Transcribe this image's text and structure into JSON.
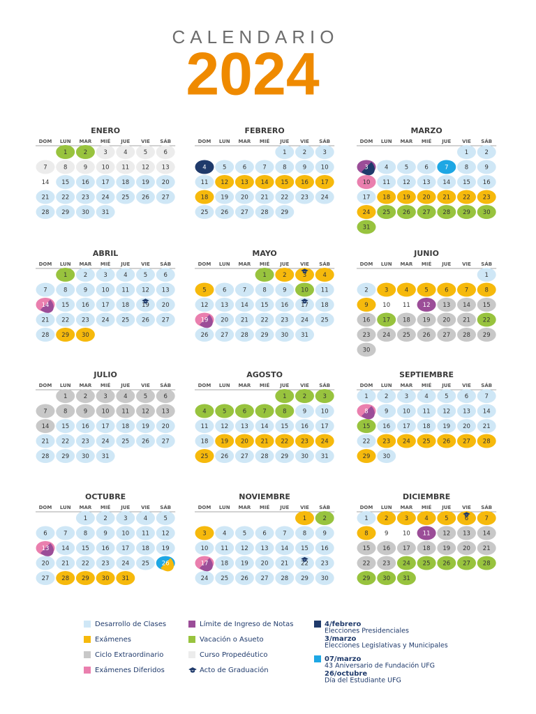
{
  "header": {
    "title": "CALENDARIO",
    "year": "2024"
  },
  "weekdays": [
    "DOM",
    "LUN",
    "MAR",
    "MIÉ",
    "JUE",
    "VIE",
    "SÁB"
  ],
  "months": [
    {
      "name": "ENERO",
      "start": 1,
      "days": [
        1,
        2,
        3,
        4,
        5,
        6,
        7,
        8,
        9,
        10,
        11,
        12,
        13,
        14,
        15,
        16,
        17,
        18,
        19,
        20,
        21,
        22,
        23,
        24,
        25,
        26,
        27,
        28,
        29,
        30,
        31
      ],
      "colors": [
        "#98c33e",
        "#98c33e",
        "#ececec",
        "#ececec",
        "#ececec",
        "#ececec",
        "#ececec",
        "#ececec",
        "#ececec",
        "#ececec",
        "#ececec",
        "#ececec",
        "#ececec",
        "#ffffff",
        "#cfe7f6",
        "#cfe7f6",
        "#cfe7f6",
        "#cfe7f6",
        "#cfe7f6",
        "#cfe7f6",
        "#cfe7f6",
        "#cfe7f6",
        "#cfe7f6",
        "#cfe7f6",
        "#cfe7f6",
        "#cfe7f6",
        "#cfe7f6",
        "#cfe7f6",
        "#cfe7f6",
        "#cfe7f6",
        "#cfe7f6"
      ],
      "caps": []
    },
    {
      "name": "FEBRERO",
      "start": 4,
      "days": [
        1,
        2,
        3,
        4,
        5,
        6,
        7,
        8,
        9,
        10,
        11,
        12,
        13,
        14,
        15,
        16,
        17,
        18,
        19,
        20,
        21,
        22,
        23,
        24,
        25,
        26,
        27,
        28,
        29
      ],
      "colors": [
        "#cfe7f6",
        "#cfe7f6",
        "#cfe7f6",
        "#1f3a6b",
        "#cfe7f6",
        "#cfe7f6",
        "#cfe7f6",
        "#cfe7f6",
        "#cfe7f6",
        "#cfe7f6",
        "#cfe7f6",
        "#f6b90c",
        "#f6b90c",
        "#f6b90c",
        "#f6b90c",
        "#f6b90c",
        "#f6b90c",
        "#f6b90c",
        "#cfe7f6",
        "#cfe7f6",
        "#cfe7f6",
        "#cfe7f6",
        "#cfe7f6",
        "#cfe7f6",
        "#cfe7f6",
        "#cfe7f6",
        "#cfe7f6",
        "#cfe7f6",
        "#cfe7f6"
      ],
      "caps": []
    },
    {
      "name": "MARZO",
      "start": 5,
      "days": [
        1,
        2,
        3,
        4,
        5,
        6,
        7,
        8,
        9,
        10,
        11,
        12,
        13,
        14,
        15,
        16,
        17,
        18,
        19,
        20,
        21,
        22,
        23,
        24,
        25,
        26,
        27,
        28,
        29,
        30,
        31
      ],
      "colors": [
        "#cfe7f6",
        "#cfe7f6",
        [
          "#9b4d98",
          "#1f3a6b"
        ],
        "#cfe7f6",
        "#cfe7f6",
        "#cfe7f6",
        "#1ea7e4",
        "#cfe7f6",
        "#cfe7f6",
        "#ea7fae",
        "#cfe7f6",
        "#cfe7f6",
        "#cfe7f6",
        "#cfe7f6",
        "#cfe7f6",
        "#cfe7f6",
        "#cfe7f6",
        "#f6b90c",
        "#f6b90c",
        "#f6b90c",
        "#f6b90c",
        "#f6b90c",
        "#f6b90c",
        "#f6b90c",
        "#98c33e",
        "#98c33e",
        "#98c33e",
        "#98c33e",
        "#98c33e",
        "#98c33e",
        "#98c33e"
      ],
      "caps": []
    },
    {
      "name": "ABRIL",
      "start": 1,
      "days": [
        1,
        2,
        3,
        4,
        5,
        6,
        7,
        8,
        9,
        10,
        11,
        12,
        13,
        14,
        15,
        16,
        17,
        18,
        19,
        20,
        21,
        22,
        23,
        24,
        25,
        26,
        27,
        28,
        29,
        30
      ],
      "colors": [
        "#98c33e",
        "#cfe7f6",
        "#cfe7f6",
        "#cfe7f6",
        "#cfe7f6",
        "#cfe7f6",
        "#cfe7f6",
        "#cfe7f6",
        "#cfe7f6",
        "#cfe7f6",
        "#cfe7f6",
        "#cfe7f6",
        "#cfe7f6",
        [
          "#ea7fae",
          "#9b4d98"
        ],
        "#cfe7f6",
        "#cfe7f6",
        "#cfe7f6",
        "#cfe7f6",
        "#cfe7f6",
        "#cfe7f6",
        "#cfe7f6",
        "#cfe7f6",
        "#cfe7f6",
        "#cfe7f6",
        "#cfe7f6",
        "#cfe7f6",
        "#cfe7f6",
        "#cfe7f6",
        "#f6b90c",
        "#f6b90c"
      ],
      "caps": [
        19
      ]
    },
    {
      "name": "MAYO",
      "start": 3,
      "days": [
        1,
        2,
        3,
        4,
        5,
        6,
        7,
        8,
        9,
        10,
        11,
        12,
        13,
        14,
        15,
        16,
        17,
        18,
        19,
        20,
        21,
        22,
        23,
        24,
        25,
        26,
        27,
        28,
        29,
        30,
        31
      ],
      "colors": [
        "#98c33e",
        "#f6b90c",
        "#f6b90c",
        "#f6b90c",
        "#f6b90c",
        "#cfe7f6",
        "#cfe7f6",
        "#cfe7f6",
        "#cfe7f6",
        "#98c33e",
        "#cfe7f6",
        "#cfe7f6",
        "#cfe7f6",
        "#cfe7f6",
        "#cfe7f6",
        "#cfe7f6",
        "#cfe7f6",
        "#cfe7f6",
        [
          "#ea7fae",
          "#9b4d98"
        ],
        "#cfe7f6",
        "#cfe7f6",
        "#cfe7f6",
        "#cfe7f6",
        "#cfe7f6",
        "#cfe7f6",
        "#cfe7f6",
        "#cfe7f6",
        "#cfe7f6",
        "#cfe7f6",
        "#cfe7f6",
        "#cfe7f6"
      ],
      "caps": [
        3,
        17
      ]
    },
    {
      "name": "JUNIO",
      "start": 6,
      "days": [
        1,
        2,
        3,
        4,
        5,
        6,
        7,
        8,
        9,
        10,
        11,
        12,
        13,
        14,
        15,
        16,
        17,
        18,
        19,
        20,
        21,
        22,
        23,
        24,
        25,
        26,
        27,
        28,
        29,
        30
      ],
      "colors": [
        "#cfe7f6",
        "#cfe7f6",
        "#f6b90c",
        "#f6b90c",
        "#f6b90c",
        "#f6b90c",
        "#f6b90c",
        "#f6b90c",
        "#f6b90c",
        "#ffffff",
        "#ffffff",
        "#9b4d98",
        "#c8c8c8",
        "#c8c8c8",
        "#c8c8c8",
        "#c8c8c8",
        "#98c33e",
        "#c8c8c8",
        "#c8c8c8",
        "#c8c8c8",
        "#c8c8c8",
        "#98c33e",
        "#c8c8c8",
        "#c8c8c8",
        "#c8c8c8",
        "#c8c8c8",
        "#c8c8c8",
        "#c8c8c8",
        "#c8c8c8",
        "#c8c8c8"
      ],
      "caps": []
    },
    {
      "name": "JULIO",
      "start": 1,
      "days": [
        1,
        2,
        3,
        4,
        5,
        6,
        7,
        8,
        9,
        10,
        11,
        12,
        13,
        14,
        15,
        16,
        17,
        18,
        19,
        20,
        21,
        22,
        23,
        24,
        25,
        26,
        27,
        28,
        29,
        30,
        31
      ],
      "colors": [
        "#c8c8c8",
        "#c8c8c8",
        "#c8c8c8",
        "#c8c8c8",
        "#c8c8c8",
        "#c8c8c8",
        "#c8c8c8",
        "#c8c8c8",
        "#c8c8c8",
        "#c8c8c8",
        "#c8c8c8",
        "#c8c8c8",
        "#c8c8c8",
        "#c8c8c8",
        "#cfe7f6",
        "#cfe7f6",
        "#cfe7f6",
        "#cfe7f6",
        "#cfe7f6",
        "#cfe7f6",
        "#cfe7f6",
        "#cfe7f6",
        "#cfe7f6",
        "#cfe7f6",
        "#cfe7f6",
        "#cfe7f6",
        "#cfe7f6",
        "#cfe7f6",
        "#cfe7f6",
        "#cfe7f6",
        "#cfe7f6"
      ],
      "caps": []
    },
    {
      "name": "AGOSTO",
      "start": 4,
      "days": [
        1,
        2,
        3,
        4,
        5,
        6,
        7,
        8,
        9,
        10,
        11,
        12,
        13,
        14,
        15,
        16,
        17,
        18,
        19,
        20,
        21,
        22,
        23,
        24,
        25,
        26,
        27,
        28,
        29,
        30,
        31
      ],
      "colors": [
        "#98c33e",
        "#98c33e",
        "#98c33e",
        "#98c33e",
        "#98c33e",
        "#98c33e",
        "#98c33e",
        "#98c33e",
        "#cfe7f6",
        "#cfe7f6",
        "#cfe7f6",
        "#cfe7f6",
        "#cfe7f6",
        "#cfe7f6",
        "#cfe7f6",
        "#cfe7f6",
        "#cfe7f6",
        "#cfe7f6",
        "#f6b90c",
        "#f6b90c",
        "#f6b90c",
        "#f6b90c",
        "#f6b90c",
        "#f6b90c",
        "#f6b90c",
        "#cfe7f6",
        "#cfe7f6",
        "#cfe7f6",
        "#cfe7f6",
        "#cfe7f6",
        "#cfe7f6"
      ],
      "caps": []
    },
    {
      "name": "SEPTIEMBRE",
      "start": 0,
      "days": [
        1,
        2,
        3,
        4,
        5,
        6,
        7,
        8,
        9,
        10,
        11,
        12,
        13,
        14,
        15,
        16,
        17,
        18,
        19,
        20,
        21,
        22,
        23,
        24,
        25,
        26,
        27,
        28,
        29,
        30
      ],
      "colors": [
        "#cfe7f6",
        "#cfe7f6",
        "#cfe7f6",
        "#cfe7f6",
        "#cfe7f6",
        "#cfe7f6",
        "#cfe7f6",
        [
          "#ea7fae",
          "#9b4d98"
        ],
        "#cfe7f6",
        "#cfe7f6",
        "#cfe7f6",
        "#cfe7f6",
        "#cfe7f6",
        "#cfe7f6",
        "#98c33e",
        "#cfe7f6",
        "#cfe7f6",
        "#cfe7f6",
        "#cfe7f6",
        "#cfe7f6",
        "#cfe7f6",
        "#cfe7f6",
        "#f6b90c",
        "#f6b90c",
        "#f6b90c",
        "#f6b90c",
        "#f6b90c",
        "#f6b90c",
        "#f6b90c",
        "#cfe7f6"
      ],
      "caps": []
    },
    {
      "name": "OCTUBRE",
      "start": 2,
      "days": [
        1,
        2,
        3,
        4,
        5,
        6,
        7,
        8,
        9,
        10,
        11,
        12,
        13,
        14,
        15,
        16,
        17,
        18,
        19,
        20,
        21,
        22,
        23,
        24,
        25,
        26,
        27,
        28,
        29,
        30,
        31
      ],
      "colors": [
        "#cfe7f6",
        "#cfe7f6",
        "#cfe7f6",
        "#cfe7f6",
        "#cfe7f6",
        "#cfe7f6",
        "#cfe7f6",
        "#cfe7f6",
        "#cfe7f6",
        "#cfe7f6",
        "#cfe7f6",
        "#cfe7f6",
        [
          "#ea7fae",
          "#9b4d98"
        ],
        "#cfe7f6",
        "#cfe7f6",
        "#cfe7f6",
        "#cfe7f6",
        "#cfe7f6",
        "#cfe7f6",
        "#cfe7f6",
        "#cfe7f6",
        "#cfe7f6",
        "#cfe7f6",
        "#cfe7f6",
        "#cfe7f6",
        [
          "#1ea7e4",
          "#f6b90c"
        ],
        "#cfe7f6",
        "#f6b90c",
        "#f6b90c",
        "#f6b90c",
        "#f6b90c"
      ],
      "caps": []
    },
    {
      "name": "NOVIEMBRE",
      "start": 5,
      "days": [
        1,
        2,
        3,
        4,
        5,
        6,
        7,
        8,
        9,
        10,
        11,
        12,
        13,
        14,
        15,
        16,
        17,
        18,
        19,
        20,
        21,
        22,
        23,
        24,
        25,
        26,
        27,
        28,
        29,
        30
      ],
      "colors": [
        "#f6b90c",
        "#98c33e",
        "#f6b90c",
        "#cfe7f6",
        "#cfe7f6",
        "#cfe7f6",
        "#cfe7f6",
        "#cfe7f6",
        "#cfe7f6",
        "#cfe7f6",
        "#cfe7f6",
        "#cfe7f6",
        "#cfe7f6",
        "#cfe7f6",
        "#cfe7f6",
        "#cfe7f6",
        [
          "#ea7fae",
          "#9b4d98"
        ],
        "#cfe7f6",
        "#cfe7f6",
        "#cfe7f6",
        "#cfe7f6",
        "#cfe7f6",
        "#cfe7f6",
        "#cfe7f6",
        "#cfe7f6",
        "#cfe7f6",
        "#cfe7f6",
        "#cfe7f6",
        "#cfe7f6",
        "#cfe7f6"
      ],
      "caps": [
        22
      ]
    },
    {
      "name": "DICIEMBRE",
      "start": 0,
      "days": [
        1,
        2,
        3,
        4,
        5,
        6,
        7,
        8,
        9,
        10,
        11,
        12,
        13,
        14,
        15,
        16,
        17,
        18,
        19,
        20,
        21,
        22,
        23,
        24,
        25,
        26,
        27,
        28,
        29,
        30,
        31
      ],
      "colors": [
        "#cfe7f6",
        "#f6b90c",
        "#f6b90c",
        "#f6b90c",
        "#f6b90c",
        "#f6b90c",
        "#f6b90c",
        "#f6b90c",
        "#ffffff",
        "#ffffff",
        "#9b4d98",
        "#c8c8c8",
        "#c8c8c8",
        "#c8c8c8",
        "#c8c8c8",
        "#c8c8c8",
        "#c8c8c8",
        "#c8c8c8",
        "#c8c8c8",
        "#c8c8c8",
        "#c8c8c8",
        "#c8c8c8",
        "#c8c8c8",
        "#98c33e",
        "#98c33e",
        "#98c33e",
        "#98c33e",
        "#98c33e",
        "#98c33e",
        "#98c33e",
        "#98c33e"
      ],
      "caps": [
        6
      ]
    }
  ],
  "legend": [
    {
      "label": "Desarrollo de Clases",
      "color": "#cfe7f6"
    },
    {
      "label": "Exámenes",
      "color": "#f6b90c"
    },
    {
      "label": "Ciclo Extraordinario",
      "color": "#c8c8c8"
    },
    {
      "label": "Exámenes Diferidos",
      "color": "#ea7fae"
    },
    {
      "label": "Límite de Ingreso de Notas",
      "color": "#9b4d98"
    },
    {
      "label": "Vacación o Asueto",
      "color": "#98c33e"
    },
    {
      "label": "Curso Propedéutico",
      "color": "#ececec"
    },
    {
      "label": "Acto de Graduación"
    }
  ],
  "notes": [
    {
      "date": "4/febrero",
      "text": "Elecciones Presidenciales",
      "color": "#1f3a6b"
    },
    {
      "date": "3/marzo",
      "text": "Elecciones Legislativas y Municipales"
    },
    {
      "date": "07/marzo",
      "text": "43 Aniversario de Fundación UFG",
      "color": "#1ea7e4"
    },
    {
      "date": "26/octubre",
      "text": "Día del Estudiante UFG"
    }
  ]
}
